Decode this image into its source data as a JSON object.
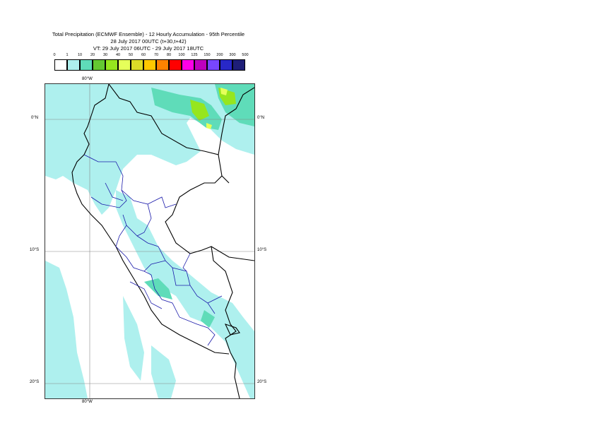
{
  "title": {
    "line1": "Total Precipitation (ECMWF Ensemble) - 12 Hourly Accumulation - 95th Percentile",
    "line2": "28 July 2017 00UTC (t+30,t+42)",
    "line3": "VT: 29 July 2017 06UTC - 29 July 2017 18UTC"
  },
  "legend": {
    "ticks": [
      "0",
      "1",
      "10",
      "20",
      "30",
      "40",
      "50",
      "60",
      "70",
      "80",
      "100",
      "125",
      "150",
      "200",
      "300",
      "500"
    ],
    "colors": [
      "#ffffff",
      "#aef0ee",
      "#5fdcb9",
      "#64c832",
      "#96e61e",
      "#e6ff5a",
      "#dcdc28",
      "#ffc800",
      "#ff8200",
      "#ff0000",
      "#ff00e6",
      "#be00be",
      "#7846ff",
      "#2828c8",
      "#1e1e78"
    ]
  },
  "axes": {
    "lon_top": "80°W",
    "lon_bottom": "80°W",
    "lat_0_left": "0°N",
    "lat_0_right": "0°N",
    "lat_10_left": "10°S",
    "lat_10_right": "10°S",
    "lat_20_left": "20°S",
    "lat_20_right": "20°S"
  },
  "map_colors": {
    "rain_light": "#aef0ee",
    "rain_mid": "#5fdcb9",
    "rain_green": "#96e61e",
    "rain_yellow": "#e6ff5a",
    "border": "#000000",
    "admin": "#1a1aaa",
    "grid": "#888888"
  }
}
